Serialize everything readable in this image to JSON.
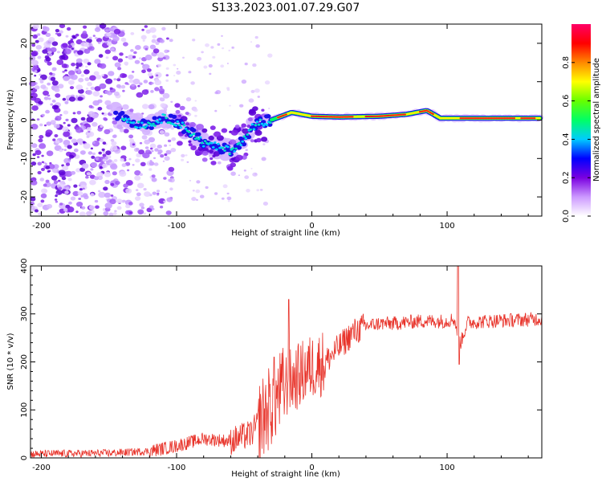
{
  "title": "S133.2023.001.07.29.G07",
  "chart_data": [
    {
      "type": "heatmap",
      "xlabel": "Height of straight line (km)",
      "ylabel": "Frequency (Hz)",
      "xlim": [
        -208,
        170
      ],
      "ylim": [
        -25,
        25
      ],
      "xticks": [
        -200,
        -100,
        0,
        100
      ],
      "xtick_labels": [
        "-200",
        "-100",
        "0",
        "100"
      ],
      "yticks": [
        -20,
        -10,
        0,
        10,
        20
      ],
      "ytick_labels": [
        "-20",
        "-10",
        "0",
        "10",
        "20"
      ],
      "grid": false,
      "colorbar": {
        "label": "Normalized spectral amplitude",
        "range": [
          0,
          1
        ],
        "ticks": [
          0.0,
          0.2,
          0.4,
          0.6,
          0.8
        ],
        "tick_labels": [
          "0.0",
          "0.2",
          "0.4",
          "0.6",
          "0.8"
        ],
        "colors": [
          "#ffffff",
          "#cc99ff",
          "#7a00e0",
          "#0000ff",
          "#00ccff",
          "#00ff66",
          "#66ff00",
          "#ffff00",
          "#ff8800",
          "#ff0000",
          "#ff0066"
        ]
      },
      "signal_track": [
        {
          "x": -145,
          "f": 1.5
        },
        {
          "x": -130,
          "f": -1
        },
        {
          "x": -120,
          "f": -1.2
        },
        {
          "x": -110,
          "f": 0.5
        },
        {
          "x": -100,
          "f": -0.5
        },
        {
          "x": -90,
          "f": -3
        },
        {
          "x": -80,
          "f": -6
        },
        {
          "x": -70,
          "f": -7
        },
        {
          "x": -60,
          "f": -8
        },
        {
          "x": -50,
          "f": -5
        },
        {
          "x": -42,
          "f": -1
        },
        {
          "x": -30,
          "f": 0
        },
        {
          "x": -15,
          "f": 2
        },
        {
          "x": 0,
          "f": 1
        },
        {
          "x": 20,
          "f": 0.8
        },
        {
          "x": 50,
          "f": 1
        },
        {
          "x": 70,
          "f": 1.5
        },
        {
          "x": 85,
          "f": 2.5
        },
        {
          "x": 95,
          "f": 0.5
        },
        {
          "x": 110,
          "f": 0.5
        },
        {
          "x": 140,
          "f": 0.5
        },
        {
          "x": 170,
          "f": 0.5
        }
      ]
    },
    {
      "type": "line",
      "xlabel": "Height of straight line (km)",
      "ylabel": "SNR (10 * v/v)",
      "xlim": [
        -208,
        170
      ],
      "ylim": [
        0,
        400
      ],
      "xticks": [
        -200,
        -100,
        0,
        100
      ],
      "xtick_labels": [
        "-200",
        "-100",
        "0",
        "100"
      ],
      "yticks": [
        0,
        100,
        200,
        300,
        400
      ],
      "ytick_labels": [
        "0",
        "100",
        "200",
        "300",
        "400"
      ],
      "grid": false,
      "line_color": "#e8332a",
      "series": [
        {
          "x": [
            -208,
            -180,
            -150,
            -120,
            -100,
            -80,
            -60,
            -45,
            -30,
            -20,
            -10,
            0,
            10,
            20,
            30,
            40,
            50,
            60,
            80,
            100,
            105,
            110,
            115,
            130,
            150,
            170
          ],
          "values": [
            8,
            9,
            10,
            14,
            25,
            40,
            35,
            50,
            110,
            150,
            170,
            190,
            200,
            230,
            260,
            275,
            280,
            280,
            285,
            285,
            290,
            240,
            282,
            285,
            287,
            290
          ]
        }
      ],
      "spikes": [
        {
          "x": -17,
          "y": 330
        },
        {
          "x": -28,
          "y": 210
        },
        {
          "x": 108,
          "y": 400
        },
        {
          "x": 109,
          "y": 195
        }
      ]
    }
  ]
}
